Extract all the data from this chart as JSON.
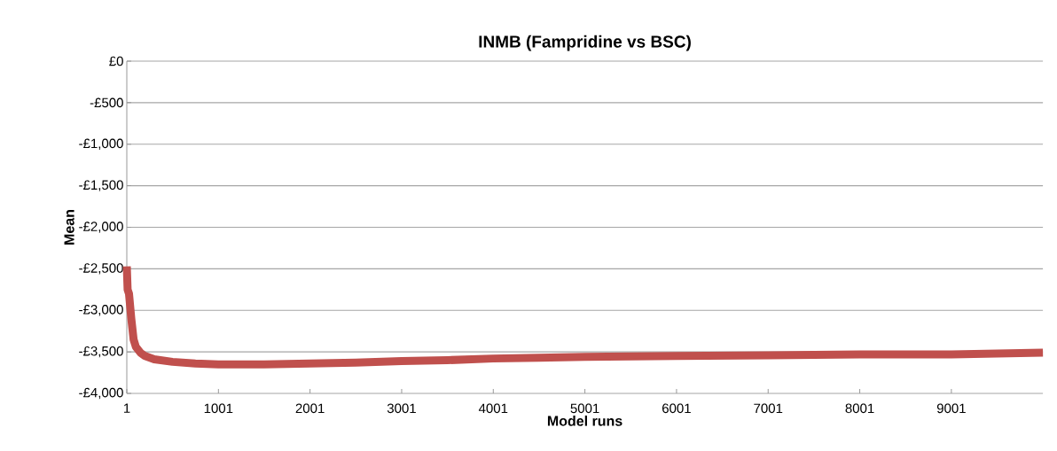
{
  "chart_data": {
    "type": "line",
    "title": "INMB (Fampridine vs BSC)",
    "xlabel": "Model runs",
    "ylabel": "Mean",
    "x": [
      1,
      10,
      25,
      50,
      75,
      100,
      150,
      200,
      300,
      500,
      750,
      1000,
      1500,
      2000,
      2500,
      3000,
      3500,
      4000,
      4500,
      5000,
      6000,
      7000,
      8000,
      9000,
      10000
    ],
    "series": [
      {
        "color": "#c0504d",
        "values": [
          -2470,
          -2750,
          -2800,
          -3100,
          -3350,
          -3440,
          -3510,
          -3550,
          -3590,
          -3620,
          -3640,
          -3650,
          -3650,
          -3640,
          -3630,
          -3610,
          -3600,
          -3580,
          -3570,
          -3560,
          -3550,
          -3540,
          -3530,
          -3530,
          -3510
        ]
      }
    ],
    "xlim": [
      1,
      10000
    ],
    "xticks": [
      1,
      1001,
      2001,
      3001,
      4001,
      5001,
      6001,
      7001,
      8001,
      9001
    ],
    "ylim": [
      -4000,
      0
    ],
    "yticks": [
      {
        "value": 0,
        "label": "£0"
      },
      {
        "value": -500,
        "label": "-£500"
      },
      {
        "value": -1000,
        "label": "-£1,000"
      },
      {
        "value": -1500,
        "label": "-£1,500"
      },
      {
        "value": -2000,
        "label": "-£2,000"
      },
      {
        "value": -2500,
        "label": "-£2,500"
      },
      {
        "value": -3000,
        "label": "-£3,000"
      },
      {
        "value": -3500,
        "label": "-£3,500"
      },
      {
        "value": -4000,
        "label": "-£4,000"
      }
    ],
    "grid": "y",
    "marker": "none",
    "line_style": "solid"
  }
}
